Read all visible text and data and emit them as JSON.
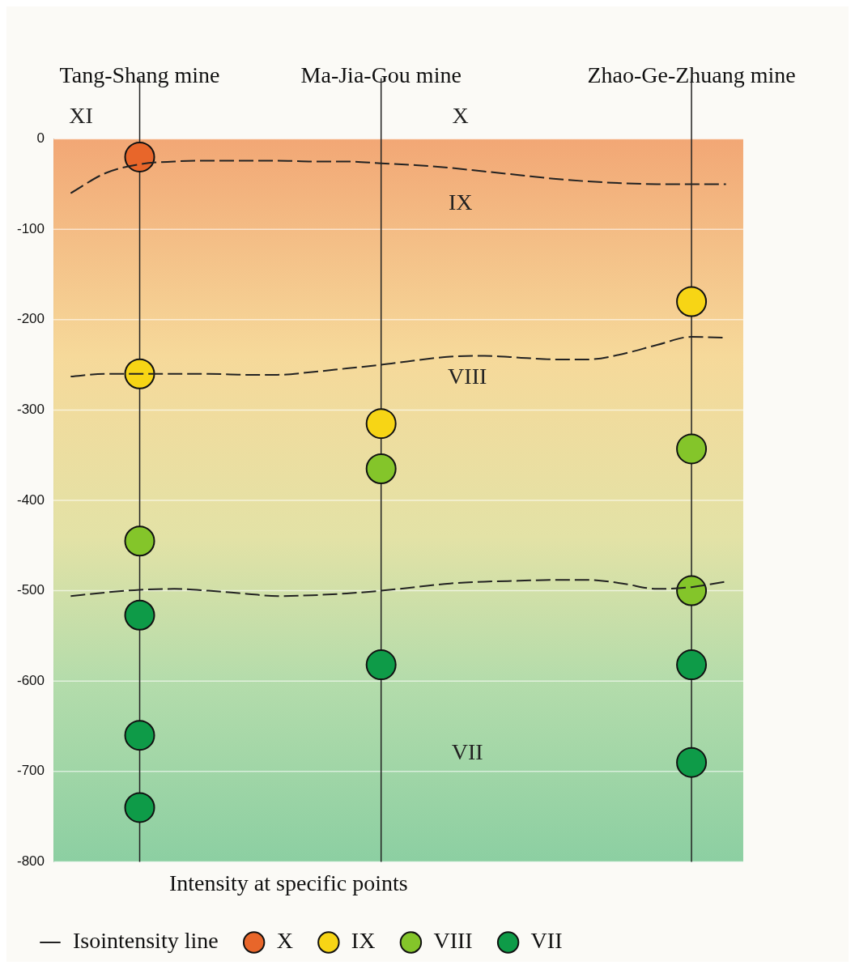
{
  "chart_data": {
    "type": "scatter",
    "legend_title": "Intensity at specific points",
    "legend": "bottom",
    "grid": true,
    "marker": "circle",
    "categories": [
      null,
      null,
      "Tang-Shang mine",
      null,
      null,
      null,
      null,
      null,
      null,
      "Ma-Jia-Gou mine",
      null,
      null,
      null,
      null,
      null,
      null,
      null,
      null,
      "Zhao-Ge-Zhuang mine",
      null
    ],
    "ylim": [
      -800,
      0
    ],
    "yticks": [
      -800,
      -700,
      -600,
      -500,
      -400,
      -300,
      -200,
      -100,
      0
    ],
    "annotations": [
      "XI",
      "X",
      "IX",
      "VIII",
      "VII"
    ],
    "series": [
      {
        "name": "X",
        "color": "#e8662a",
        "x": [
          "Tang-Shang mine"
        ],
        "values": [
          -20
        ]
      },
      {
        "name": "IX",
        "color": "#f7d515",
        "x": [
          "Tang-Shang mine",
          "Ma-Jia-Gou mine",
          "Zhao-Ge-Zhuang mine"
        ],
        "values": [
          -260,
          -315,
          -180
        ]
      },
      {
        "name": "VIII",
        "color": "#84c52a",
        "x": [
          "Tang-Shang mine",
          "Ma-Jia-Gou mine",
          "Zhao-Ge-Zhuang mine",
          "Zhao-Ge-Zhuang mine"
        ],
        "values": [
          -445,
          -365,
          -343,
          -500
        ]
      },
      {
        "name": "VII",
        "color": "#0e9b48",
        "x": [
          "Tang-Shang mine",
          "Tang-Shang mine",
          "Tang-Shang mine",
          "Ma-Jia-Gou mine",
          "Zhao-Ge-Zhuang mine",
          "Zhao-Ge-Zhuang mine"
        ],
        "values": [
          -527,
          -660,
          -740,
          -582,
          -582,
          -690
        ]
      },
      {
        "name": "Isointensity line",
        "type": "line",
        "color": "#222222",
        "line_style": "dashed",
        "marker": "none",
        "values": [
          -60,
          -38,
          -28,
          -25,
          -24,
          -24,
          -24,
          -25,
          -25,
          -27,
          -29,
          -32,
          -36,
          -40,
          -44,
          -47,
          -49,
          -50,
          -50,
          -50
        ]
      },
      {
        "type": "line",
        "color": "#222222",
        "line_style": "dashed",
        "marker": "none",
        "values": [
          -263,
          -260,
          -260,
          -260,
          -260,
          -261,
          -261,
          -258,
          -254,
          -250,
          -245,
          -241,
          -240,
          -242,
          -244,
          -244,
          -238,
          -228,
          -219,
          -220
        ]
      },
      {
        "type": "line",
        "color": "#222222",
        "line_style": "dashed",
        "marker": "none",
        "values": [
          -506,
          -502,
          -499,
          -498,
          -500,
          -503,
          -506,
          -505,
          -503,
          -500,
          -496,
          -492,
          -490,
          -489,
          -488,
          -488,
          -492,
          -498,
          -496,
          -490
        ]
      }
    ]
  }
}
